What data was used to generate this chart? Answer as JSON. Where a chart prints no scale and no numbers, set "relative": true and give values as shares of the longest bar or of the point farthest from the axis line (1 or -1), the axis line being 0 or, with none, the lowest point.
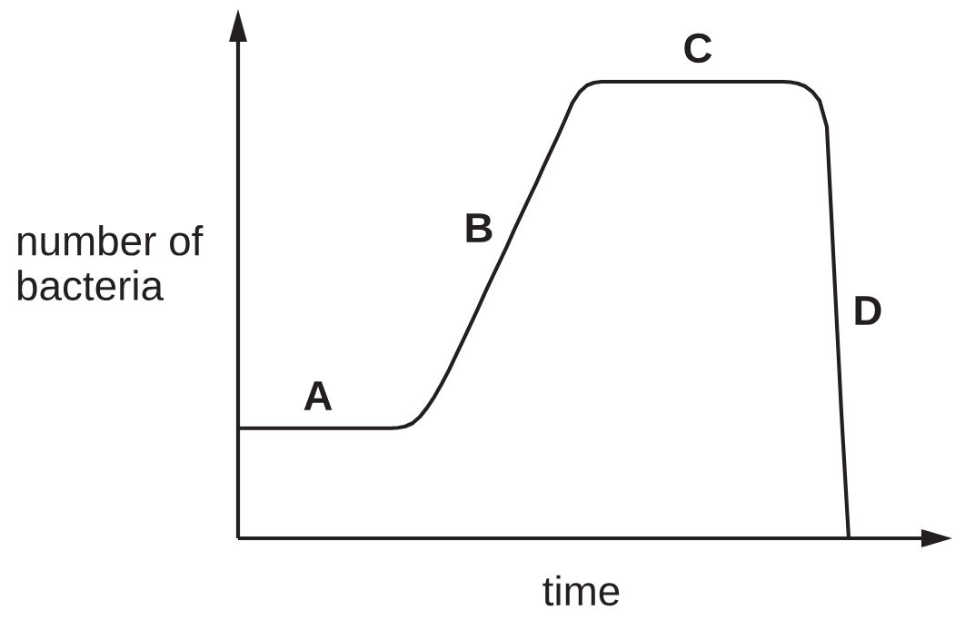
{
  "chart_data": {
    "type": "line",
    "relative": true,
    "xlabel": "time",
    "ylabel": "number of\nbacteria",
    "annotations": [
      "A",
      "B",
      "C",
      "D"
    ],
    "categories": [
      null,
      null,
      null,
      null,
      null,
      null,
      null,
      null,
      null,
      null,
      null,
      null,
      null,
      null,
      null,
      null,
      null,
      null,
      null,
      null,
      null,
      null,
      null,
      null,
      null,
      null,
      null,
      null,
      null,
      null,
      null,
      null,
      null,
      null,
      null,
      null,
      null,
      null,
      null,
      null,
      null,
      null,
      null,
      null,
      null,
      null,
      null,
      null,
      null,
      null,
      null,
      null,
      null,
      null,
      null,
      null,
      null,
      null,
      null,
      null,
      null,
      null,
      null,
      null,
      null,
      null,
      null,
      null,
      null,
      null,
      null,
      null,
      null,
      null,
      null,
      null,
      null,
      null,
      null,
      null,
      null,
      null,
      null,
      null,
      null
    ],
    "series": [
      {
        "color": "#231f20",
        "values": [
          0.241,
          0.241,
          0.241,
          0.241,
          0.241,
          0.241,
          0.241,
          0.241,
          0.241,
          0.241,
          0.241,
          0.241,
          0.241,
          0.241,
          0.241,
          0.241,
          0.241,
          0.241,
          0.241,
          0.241,
          0.241,
          0.241,
          0.242,
          0.245,
          0.252,
          0.266,
          0.286,
          0.31,
          0.338,
          0.368,
          0.402,
          0.435,
          0.469,
          0.503,
          0.539,
          0.573,
          0.606,
          0.64,
          0.676,
          0.71,
          0.744,
          0.777,
          0.813,
          0.847,
          0.881,
          0.917,
          0.954,
          0.978,
          0.992,
          0.998,
          1,
          1,
          1,
          1,
          1,
          1,
          1,
          1,
          1,
          1,
          1,
          1,
          1,
          1,
          1,
          1,
          1,
          1,
          1,
          1,
          1,
          1,
          1,
          1,
          1,
          1,
          0.999,
          0.996,
          0.99,
          0.978,
          0.958,
          0.901,
          0.586,
          0.274,
          0
        ]
      }
    ]
  }
}
